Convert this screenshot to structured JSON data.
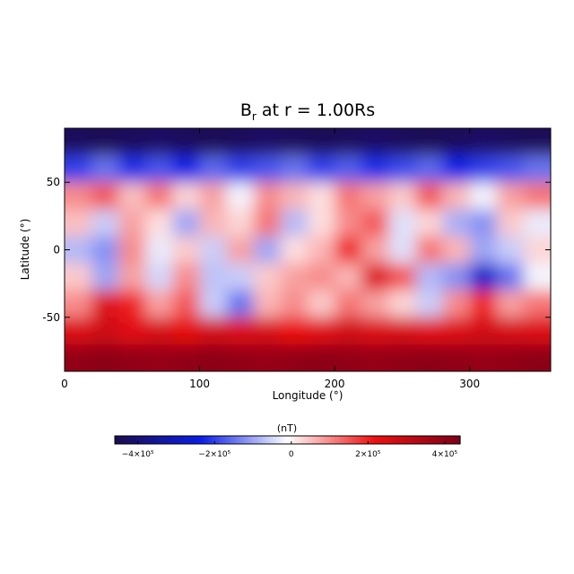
{
  "chart_data": {
    "type": "heatmap",
    "title": {
      "symbol": "B",
      "subscript": "r",
      "text": "at r = 1.00Rs"
    },
    "x_label": "Longitude (°)",
    "y_label": "Latitude (°)",
    "xlim": [
      0,
      360
    ],
    "xticks": [
      0,
      100,
      200,
      300
    ],
    "ylim": [
      -90,
      90
    ],
    "yticks": [
      -50,
      0,
      50
    ],
    "x": [
      10,
      30,
      50,
      70,
      90,
      110,
      130,
      150,
      170,
      190,
      210,
      230,
      250,
      270,
      290,
      310,
      330,
      350
    ],
    "y": [
      80,
      60,
      40,
      20,
      0,
      -20,
      -40,
      -60,
      -80
    ],
    "z": [
      [
        -440000,
        -450000,
        -440000,
        -430000,
        -440000,
        -450000,
        -440000,
        -430000,
        -440000,
        -450000,
        -440000,
        -430000,
        -440000,
        -450000,
        -440000,
        -430000,
        -440000,
        -450000
      ],
      [
        -200000,
        -150000,
        -220000,
        -180000,
        -230000,
        -160000,
        -200000,
        -180000,
        -150000,
        -200000,
        -170000,
        -220000,
        -190000,
        -160000,
        -230000,
        -200000,
        -180000,
        -150000
      ],
      [
        100000,
        150000,
        50000,
        120000,
        30000,
        80000,
        -20000,
        100000,
        60000,
        20000,
        120000,
        80000,
        40000,
        150000,
        60000,
        -20000,
        80000,
        120000
      ],
      [
        50000,
        -60000,
        80000,
        20000,
        -100000,
        60000,
        30000,
        120000,
        -80000,
        20000,
        100000,
        150000,
        -40000,
        30000,
        -90000,
        -120000,
        40000,
        -30000
      ],
      [
        -80000,
        -120000,
        100000,
        -30000,
        40000,
        -60000,
        80000,
        -100000,
        20000,
        60000,
        200000,
        80000,
        -40000,
        120000,
        60000,
        -100000,
        -60000,
        30000
      ],
      [
        40000,
        -100000,
        80000,
        -50000,
        100000,
        -70000,
        -60000,
        40000,
        80000,
        100000,
        60000,
        250000,
        150000,
        -80000,
        -120000,
        -280000,
        -150000,
        -20000
      ],
      [
        100000,
        250000,
        200000,
        80000,
        150000,
        -60000,
        -150000,
        60000,
        100000,
        40000,
        120000,
        80000,
        30000,
        -60000,
        100000,
        200000,
        80000,
        120000
      ],
      [
        250000,
        280000,
        240000,
        260000,
        230000,
        270000,
        250000,
        260000,
        220000,
        240000,
        270000,
        250000,
        260000,
        240000,
        250000,
        270000,
        260000,
        250000
      ],
      [
        400000,
        410000,
        400000,
        390000,
        400000,
        410000,
        400000,
        390000,
        400000,
        410000,
        400000,
        390000,
        400000,
        410000,
        400000,
        390000,
        400000,
        410000
      ]
    ],
    "colormap": [
      "#1c0d4f",
      "#0a1ee6",
      "#ffffff",
      "#ee1111",
      "#7d0018"
    ],
    "colorbar": {
      "label": "(nT)",
      "clim": [
        -460000,
        440000
      ],
      "ticks": [
        {
          "value": -400000,
          "label": "−4×10⁵"
        },
        {
          "value": -200000,
          "label": "−2×10⁵"
        },
        0,
        {
          "value": 200000,
          "label": "2×10⁵"
        },
        {
          "value": 400000,
          "label": "4×10⁵"
        }
      ]
    }
  }
}
